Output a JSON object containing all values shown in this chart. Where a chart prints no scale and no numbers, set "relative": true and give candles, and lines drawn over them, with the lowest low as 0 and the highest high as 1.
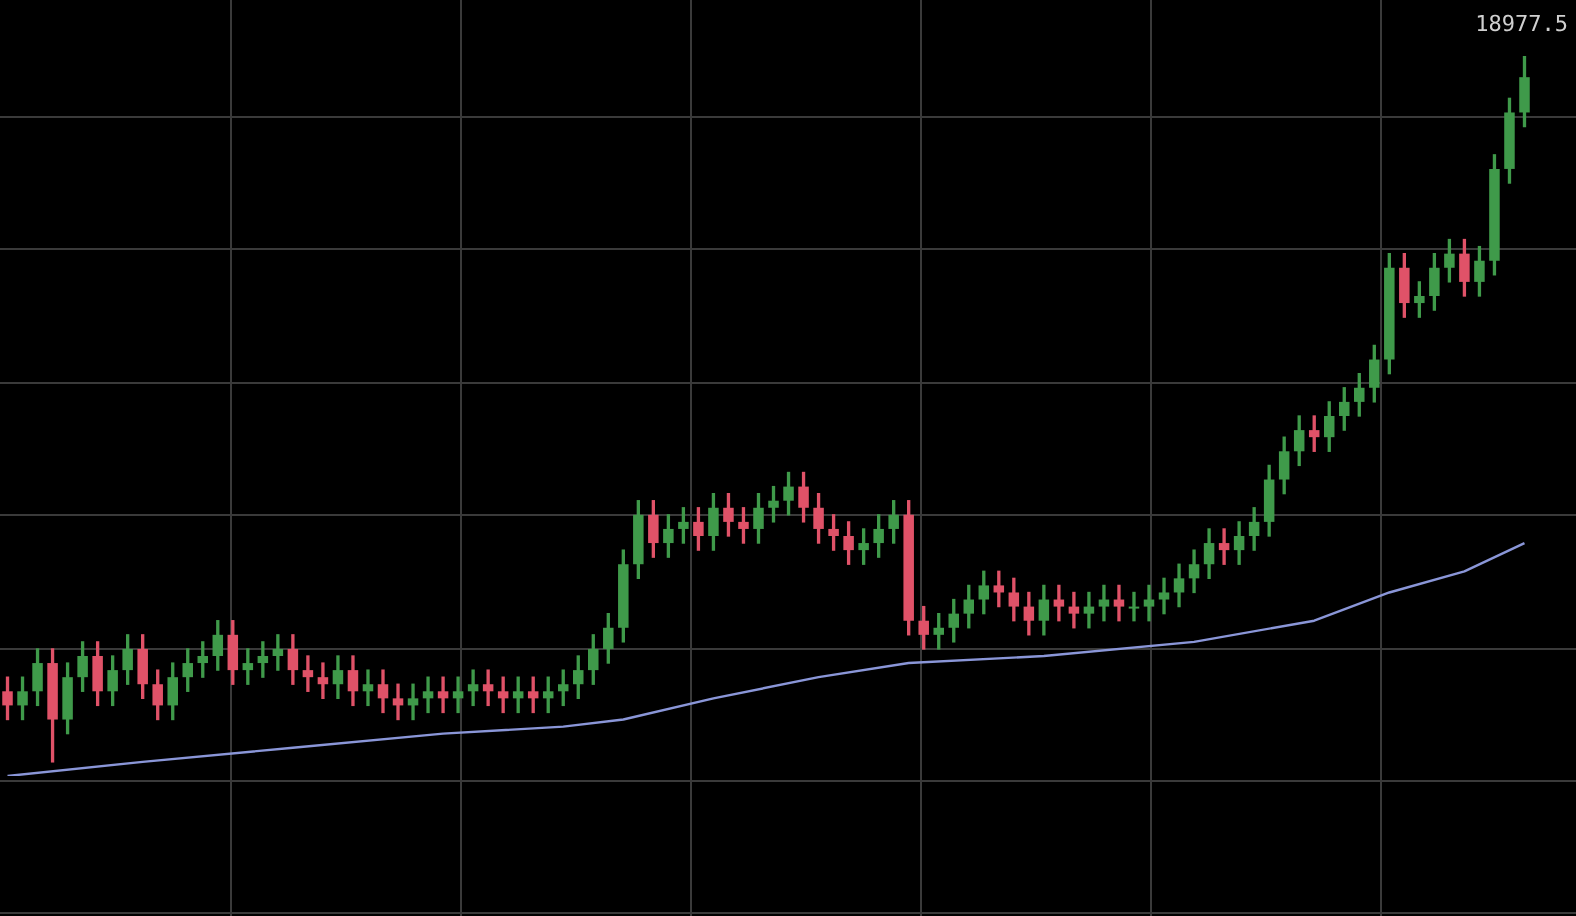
{
  "chart_data": {
    "type": "candlestick",
    "relative": true,
    "grid": true,
    "annotations": [
      "18977.5"
    ],
    "categories": [
      null,
      null,
      null,
      null,
      null,
      null,
      null,
      null,
      null,
      null,
      null,
      null,
      null,
      null,
      null,
      null,
      null,
      null,
      null,
      null,
      null,
      null,
      null,
      null,
      null,
      null,
      null,
      null,
      null,
      null,
      null,
      null,
      null,
      null,
      null,
      null,
      null,
      null,
      null,
      null,
      null,
      null,
      null,
      null,
      null,
      null,
      null,
      null,
      null,
      null,
      null,
      null,
      null,
      null,
      null,
      null,
      null,
      null,
      null,
      null,
      null,
      null,
      null,
      null,
      null,
      null,
      null,
      null,
      null,
      null,
      null,
      null,
      null,
      null,
      null,
      null,
      null,
      null,
      null,
      null,
      null,
      null,
      null,
      null,
      null,
      null,
      null,
      null,
      null,
      null,
      null,
      null,
      null,
      null,
      null,
      null,
      null,
      null,
      null,
      null,
      null,
      null
    ],
    "ohlc": [
      [
        0.1,
        0.12,
        0.06,
        0.08
      ],
      [
        0.08,
        0.12,
        0.06,
        0.1
      ],
      [
        0.1,
        0.16,
        0.08,
        0.14
      ],
      [
        0.14,
        0.16,
        0.0,
        0.06
      ],
      [
        0.06,
        0.14,
        0.04,
        0.12
      ],
      [
        0.12,
        0.17,
        0.1,
        0.15
      ],
      [
        0.15,
        0.17,
        0.08,
        0.1
      ],
      [
        0.1,
        0.15,
        0.08,
        0.13
      ],
      [
        0.13,
        0.18,
        0.11,
        0.16
      ],
      [
        0.16,
        0.18,
        0.09,
        0.11
      ],
      [
        0.11,
        0.13,
        0.06,
        0.08
      ],
      [
        0.08,
        0.14,
        0.06,
        0.12
      ],
      [
        0.12,
        0.16,
        0.1,
        0.14
      ],
      [
        0.14,
        0.17,
        0.12,
        0.15
      ],
      [
        0.15,
        0.2,
        0.13,
        0.18
      ],
      [
        0.18,
        0.2,
        0.11,
        0.13
      ],
      [
        0.13,
        0.16,
        0.11,
        0.14
      ],
      [
        0.14,
        0.17,
        0.12,
        0.15
      ],
      [
        0.15,
        0.18,
        0.13,
        0.16
      ],
      [
        0.16,
        0.18,
        0.11,
        0.13
      ],
      [
        0.13,
        0.15,
        0.1,
        0.12
      ],
      [
        0.12,
        0.14,
        0.09,
        0.11
      ],
      [
        0.11,
        0.15,
        0.09,
        0.13
      ],
      [
        0.13,
        0.15,
        0.08,
        0.1
      ],
      [
        0.1,
        0.13,
        0.08,
        0.11
      ],
      [
        0.11,
        0.13,
        0.07,
        0.09
      ],
      [
        0.09,
        0.11,
        0.06,
        0.08
      ],
      [
        0.08,
        0.11,
        0.06,
        0.09
      ],
      [
        0.09,
        0.12,
        0.07,
        0.1
      ],
      [
        0.1,
        0.12,
        0.07,
        0.09
      ],
      [
        0.09,
        0.12,
        0.07,
        0.1
      ],
      [
        0.1,
        0.13,
        0.08,
        0.11
      ],
      [
        0.11,
        0.13,
        0.08,
        0.1
      ],
      [
        0.1,
        0.12,
        0.07,
        0.09
      ],
      [
        0.09,
        0.12,
        0.07,
        0.1
      ],
      [
        0.1,
        0.12,
        0.07,
        0.09
      ],
      [
        0.09,
        0.12,
        0.07,
        0.1
      ],
      [
        0.1,
        0.13,
        0.08,
        0.11
      ],
      [
        0.11,
        0.15,
        0.09,
        0.13
      ],
      [
        0.13,
        0.18,
        0.11,
        0.16
      ],
      [
        0.16,
        0.21,
        0.14,
        0.19
      ],
      [
        0.19,
        0.3,
        0.17,
        0.28
      ],
      [
        0.28,
        0.37,
        0.26,
        0.35
      ],
      [
        0.35,
        0.37,
        0.29,
        0.31
      ],
      [
        0.31,
        0.35,
        0.29,
        0.33
      ],
      [
        0.33,
        0.36,
        0.31,
        0.34
      ],
      [
        0.34,
        0.36,
        0.3,
        0.32
      ],
      [
        0.32,
        0.38,
        0.3,
        0.36
      ],
      [
        0.36,
        0.38,
        0.32,
        0.34
      ],
      [
        0.34,
        0.36,
        0.31,
        0.33
      ],
      [
        0.33,
        0.38,
        0.31,
        0.36
      ],
      [
        0.36,
        0.39,
        0.34,
        0.37
      ],
      [
        0.37,
        0.41,
        0.35,
        0.39
      ],
      [
        0.39,
        0.41,
        0.34,
        0.36
      ],
      [
        0.36,
        0.38,
        0.31,
        0.33
      ],
      [
        0.33,
        0.35,
        0.3,
        0.32
      ],
      [
        0.32,
        0.34,
        0.28,
        0.3
      ],
      [
        0.3,
        0.33,
        0.28,
        0.31
      ],
      [
        0.31,
        0.35,
        0.29,
        0.33
      ],
      [
        0.33,
        0.37,
        0.31,
        0.35
      ],
      [
        0.35,
        0.37,
        0.18,
        0.2
      ],
      [
        0.2,
        0.22,
        0.16,
        0.18
      ],
      [
        0.18,
        0.21,
        0.16,
        0.19
      ],
      [
        0.19,
        0.23,
        0.17,
        0.21
      ],
      [
        0.21,
        0.25,
        0.19,
        0.23
      ],
      [
        0.23,
        0.27,
        0.21,
        0.25
      ],
      [
        0.25,
        0.27,
        0.22,
        0.24
      ],
      [
        0.24,
        0.26,
        0.2,
        0.22
      ],
      [
        0.22,
        0.24,
        0.18,
        0.2
      ],
      [
        0.2,
        0.25,
        0.18,
        0.23
      ],
      [
        0.23,
        0.25,
        0.2,
        0.22
      ],
      [
        0.22,
        0.24,
        0.19,
        0.21
      ],
      [
        0.21,
        0.24,
        0.19,
        0.22
      ],
      [
        0.22,
        0.25,
        0.2,
        0.23
      ],
      [
        0.23,
        0.25,
        0.2,
        0.22
      ],
      [
        0.22,
        0.24,
        0.2,
        0.22
      ],
      [
        0.22,
        0.25,
        0.2,
        0.23
      ],
      [
        0.23,
        0.26,
        0.21,
        0.24
      ],
      [
        0.24,
        0.28,
        0.22,
        0.26
      ],
      [
        0.26,
        0.3,
        0.24,
        0.28
      ],
      [
        0.28,
        0.33,
        0.26,
        0.31
      ],
      [
        0.31,
        0.33,
        0.28,
        0.3
      ],
      [
        0.3,
        0.34,
        0.28,
        0.32
      ],
      [
        0.32,
        0.36,
        0.3,
        0.34
      ],
      [
        0.34,
        0.42,
        0.32,
        0.4
      ],
      [
        0.4,
        0.46,
        0.38,
        0.44
      ],
      [
        0.44,
        0.49,
        0.42,
        0.47
      ],
      [
        0.47,
        0.49,
        0.44,
        0.46
      ],
      [
        0.46,
        0.51,
        0.44,
        0.49
      ],
      [
        0.49,
        0.53,
        0.47,
        0.51
      ],
      [
        0.51,
        0.55,
        0.49,
        0.53
      ],
      [
        0.53,
        0.59,
        0.51,
        0.57
      ],
      [
        0.57,
        0.72,
        0.55,
        0.7
      ],
      [
        0.7,
        0.72,
        0.63,
        0.65
      ],
      [
        0.65,
        0.68,
        0.63,
        0.66
      ],
      [
        0.66,
        0.72,
        0.64,
        0.7
      ],
      [
        0.7,
        0.74,
        0.68,
        0.72
      ],
      [
        0.72,
        0.74,
        0.66,
        0.68
      ],
      [
        0.68,
        0.73,
        0.66,
        0.71
      ],
      [
        0.71,
        0.86,
        0.69,
        0.84
      ],
      [
        0.84,
        0.94,
        0.82,
        0.92
      ],
      [
        0.92,
        1.0,
        0.9,
        0.97
      ]
    ],
    "series": [
      {
        "type": "line",
        "color": "#8a96d8",
        "values": [
          -0.02,
          null,
          null,
          null,
          null,
          null,
          null,
          null,
          null,
          0.0,
          null,
          null,
          null,
          null,
          null,
          null,
          null,
          null,
          null,
          0.02,
          null,
          null,
          null,
          null,
          null,
          null,
          null,
          null,
          null,
          0.04,
          null,
          null,
          null,
          null,
          null,
          null,
          null,
          0.05,
          null,
          null,
          null,
          0.06,
          null,
          null,
          null,
          null,
          null,
          0.09,
          null,
          null,
          null,
          null,
          null,
          null,
          0.12,
          null,
          null,
          null,
          null,
          null,
          0.14,
          null,
          null,
          null,
          null,
          null,
          null,
          null,
          null,
          0.15,
          null,
          null,
          null,
          null,
          null,
          null,
          null,
          null,
          null,
          0.17,
          null,
          null,
          null,
          null,
          null,
          null,
          null,
          0.2,
          null,
          null,
          null,
          null,
          0.24,
          null,
          null,
          null,
          null,
          0.27,
          null,
          null,
          null,
          0.31
        ]
      }
    ]
  }
}
